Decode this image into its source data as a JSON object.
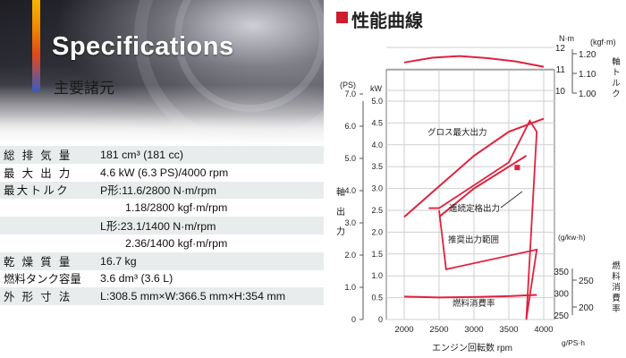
{
  "left": {
    "title": "Specifications",
    "subtitle": "主要諸元",
    "rows": [
      {
        "label": "総 排 気 量",
        "value": "181 cm³ (181 cc)"
      },
      {
        "label": "最 大 出 力",
        "value": "4.6 kW (6.3 PS)/4000 rpm"
      },
      {
        "label": "最大トルク",
        "value": "P形:11.6/2800 N·m/rpm"
      },
      {
        "label": "",
        "value": "1.18/2800 kgf·m/rpm"
      },
      {
        "label": "",
        "value": "L形:23.1/1400 N·m/rpm"
      },
      {
        "label": "",
        "value": "2.36/1400 kgf·m/rpm"
      },
      {
        "label": "乾 燥 質 量",
        "value": "16.7 kg"
      },
      {
        "label": "燃料タンク容量",
        "value": "3.6 dm³ (3.6 L)"
      },
      {
        "label": "外 形 寸 法",
        "value": "L:308.5 mm×W:366.5 mm×H:354 mm"
      }
    ]
  },
  "right": {
    "title": "性能曲線"
  },
  "chart_data": {
    "type": "line",
    "x": [
      2000,
      2500,
      3000,
      3500,
      4000
    ],
    "xlabel": "エンジン回転数 rpm",
    "xlim": [
      2000,
      4000
    ],
    "left_axis": {
      "label_ps": "(PS)",
      "label_kw": "kW",
      "ylabel": "軸出力",
      "ps_ticks": [
        "0",
        "1.0",
        "2.0",
        "3.0",
        "4.0",
        "5.0",
        "6.0",
        "7.0"
      ],
      "kw_ticks": [
        "0",
        "0.5",
        "1.0",
        "1.5",
        "2.0",
        "2.5",
        "3.0",
        "3.5",
        "4.0",
        "4.5",
        "5.0"
      ]
    },
    "torque_axis": {
      "unit_nm": "N·m",
      "unit_kgfm": "(kgf·m)",
      "ylabel": "軸トルク",
      "nm_ticks": [
        "10",
        "11",
        "12"
      ],
      "kgfm_ticks": [
        "1.00",
        "1.10",
        "1.20"
      ]
    },
    "fuel_axis": {
      "unit": "(g/kw·h)",
      "unit_ps": "g/PS·h",
      "ylabel": "燃料消費率",
      "ticks": [
        "250",
        "300",
        "350"
      ],
      "ps_ticks": [
        "200",
        "250"
      ]
    },
    "x_ticks": [
      "2000",
      "2500",
      "3000",
      "3500",
      "4000"
    ],
    "annotations": [
      "グロス最大出力",
      "連続定格出力",
      "推奨出力範囲",
      "燃料消費率"
    ],
    "series": [
      {
        "name": "グロス最大出力",
        "unit": "kW",
        "color": "#e0223d",
        "x": [
          2000,
          2500,
          3000,
          3500,
          4000
        ],
        "y": [
          2.35,
          3.05,
          3.75,
          4.3,
          4.6
        ]
      },
      {
        "name": "連続定格出力",
        "unit": "kW",
        "color": "#e0223d",
        "x": [
          2500,
          3000,
          3500,
          3750
        ],
        "y": [
          2.35,
          3.0,
          3.5,
          3.75
        ]
      },
      {
        "unit": "N·m",
        "color": "#e0223d",
        "x": [
          2000,
          2400,
          2800,
          3200,
          3600,
          4000
        ],
        "y": [
          11.3,
          11.52,
          11.6,
          11.5,
          11.35,
          11.1
        ]
      },
      {
        "name": "燃料消費率",
        "unit": "g/kW·h",
        "color": "#e0223d",
        "x": [
          2000,
          2500,
          3000,
          3500,
          3900
        ],
        "y": [
          292,
          290,
          291,
          293,
          296
        ]
      }
    ],
    "accent_color": "#e0223d"
  }
}
